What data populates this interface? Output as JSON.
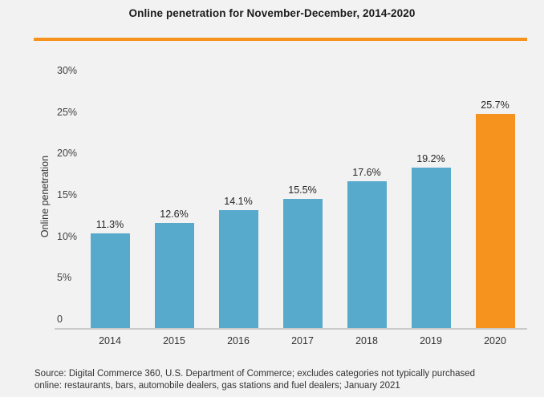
{
  "title": "Online penetration for November-December, 2014-2020",
  "theme": {
    "background": "#F2F2F2",
    "accent_orange": "#F6921E",
    "bar_blue": "#58AACD",
    "axis_line_gray": "#C9C9C9"
  },
  "chart_data": {
    "type": "bar",
    "title": "Online penetration for November-December, 2014-2020",
    "categories": [
      "2014",
      "2015",
      "2016",
      "2017",
      "2018",
      "2019",
      "2020"
    ],
    "values": [
      11.3,
      12.6,
      14.1,
      15.5,
      17.6,
      19.2,
      25.7
    ],
    "value_labels": [
      "11.3%",
      "12.6%",
      "14.1%",
      "15.5%",
      "17.6%",
      "19.2%",
      "25.7%"
    ],
    "xlabel": "",
    "ylabel": "Online penetration",
    "ylim": [
      0,
      30
    ],
    "y_ticks": [
      {
        "value": 0,
        "label": "0"
      },
      {
        "value": 5,
        "label": "5%"
      },
      {
        "value": 10,
        "label": "10%"
      },
      {
        "value": 15,
        "label": "15%"
      },
      {
        "value": 20,
        "label": "20%"
      },
      {
        "value": 25,
        "label": "25%"
      },
      {
        "value": 30,
        "label": "30%"
      }
    ],
    "grid": false,
    "legend": "none",
    "bar_colors": {
      "default": "#58AACD",
      "highlight": "#F6921E",
      "highlight_index": 6
    }
  },
  "source": {
    "line1": "Source: Digital Commerce 360, U.S. Department of Commerce; excludes categories not typically purchased",
    "line2": "online: restaurants, bars, automobile dealers, gas stations and fuel dealers; January 2021"
  }
}
